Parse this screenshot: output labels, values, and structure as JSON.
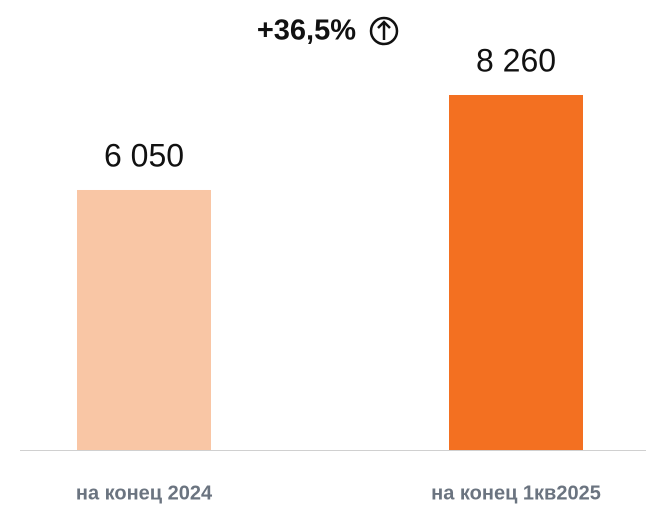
{
  "chart_data": {
    "type": "bar",
    "annotation": "+36,5%",
    "categories": [
      "на конец 2024",
      "на конец 1кв2025"
    ],
    "values": [
      6050,
      8260
    ],
    "value_labels": [
      "6 050",
      "8 260"
    ],
    "colors": [
      "#f9c6a5",
      "#f37021"
    ]
  }
}
